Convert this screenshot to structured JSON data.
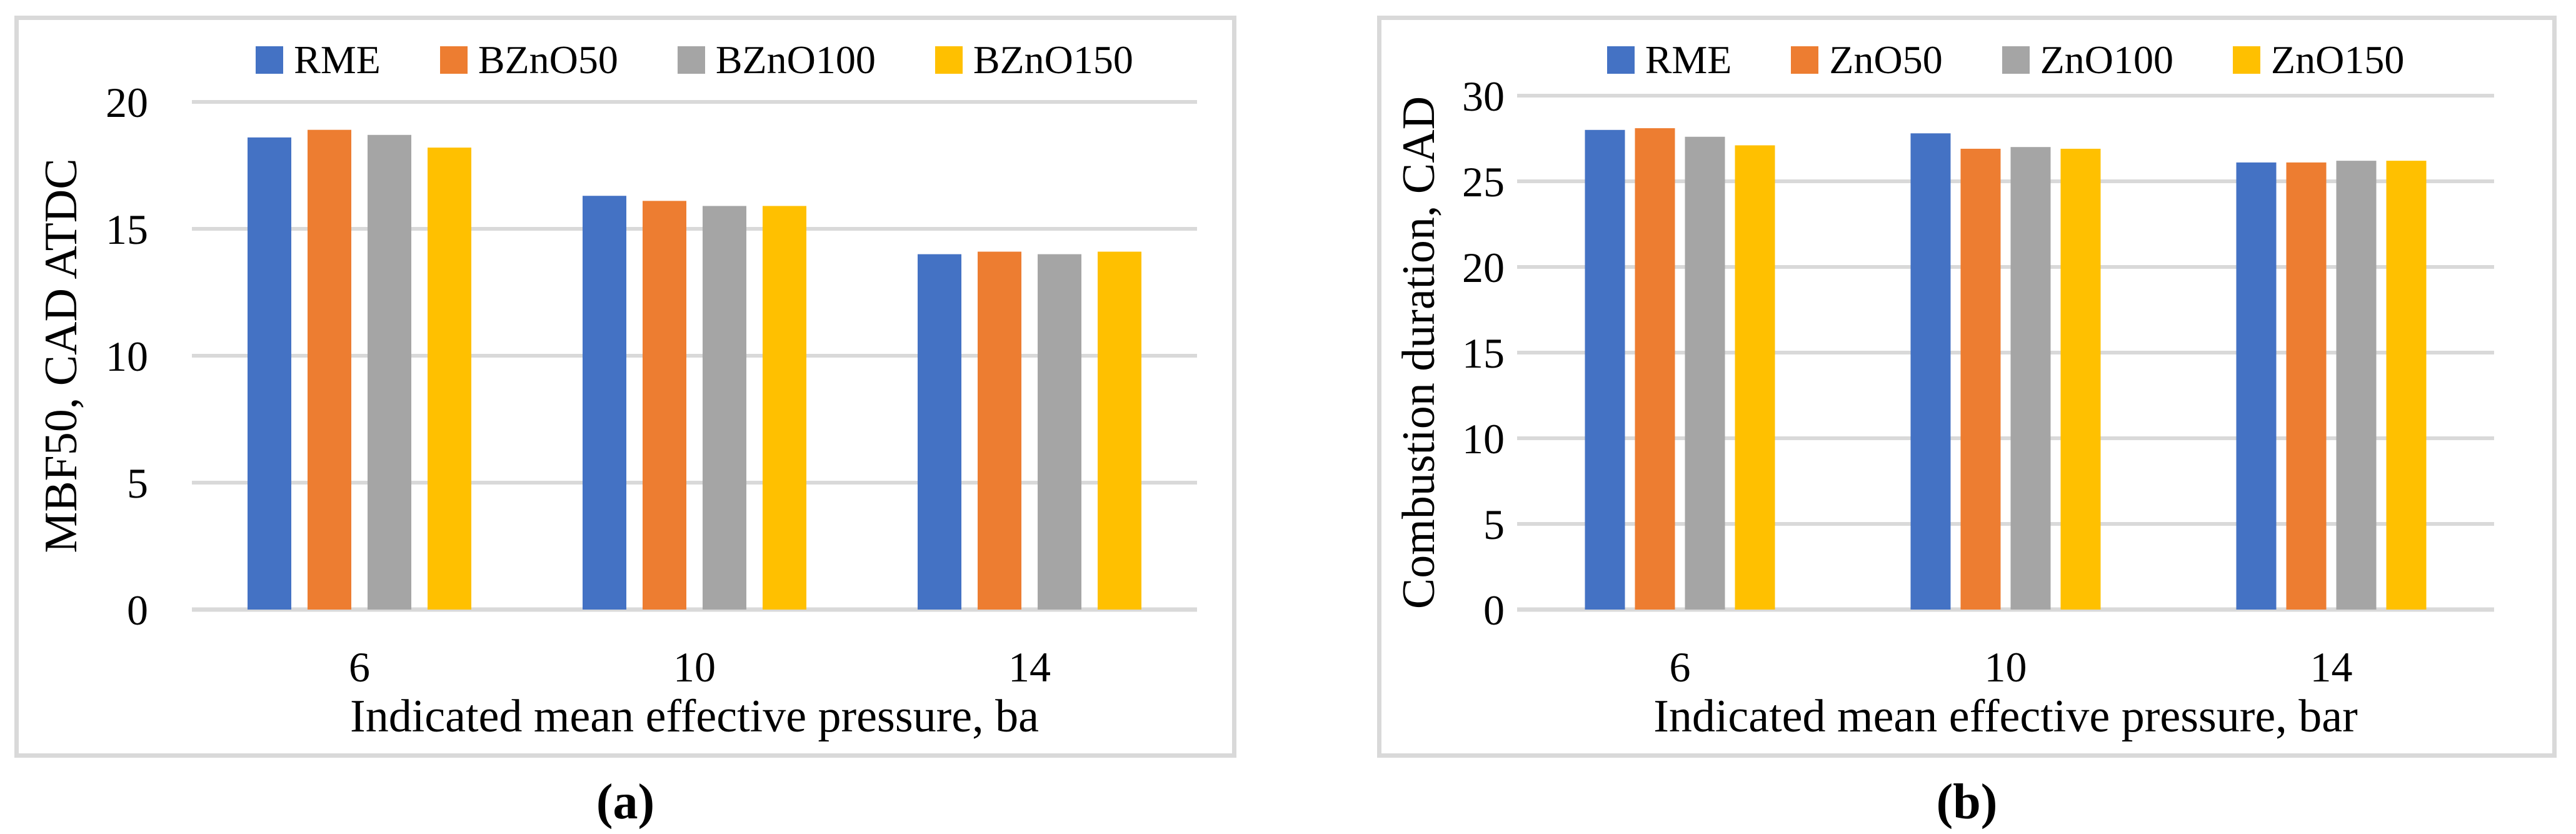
{
  "figure": {
    "background": "#FFFFFF",
    "captions": {
      "a": "(a)",
      "b": "(b)"
    }
  },
  "style": {
    "gridline_color": "#D9D9D9",
    "axis_line_color": "#D9D9D9",
    "panel_border_color": "#D9D9D9",
    "text_color": "#000000",
    "series_colors": [
      "#4472C4",
      "#ED7D31",
      "#A5A5A5",
      "#FFC000"
    ]
  },
  "chart_data": [
    {
      "id": "a",
      "type": "bar",
      "caption": "(a)",
      "title": "",
      "xlabel": "Indicated mean effective pressure, ba",
      "ylabel": "MBF50, CAD ATDC",
      "categories": [
        "6",
        "10",
        "14"
      ],
      "ylim": [
        0,
        20
      ],
      "yticks": [
        0,
        5,
        10,
        15,
        20
      ],
      "grid": true,
      "legend_position": "top",
      "legend": [
        "RME",
        "BZnO50",
        "BZnO100",
        "BZnO150"
      ],
      "series": [
        {
          "name": "RME",
          "color": "#4472C4",
          "values": [
            18.6,
            16.3,
            14.0
          ]
        },
        {
          "name": "BZnO50",
          "color": "#ED7D31",
          "values": [
            18.9,
            16.1,
            14.1
          ]
        },
        {
          "name": "BZnO100",
          "color": "#A5A5A5",
          "values": [
            18.7,
            15.9,
            14.0
          ]
        },
        {
          "name": "BZnO150",
          "color": "#FFC000",
          "values": [
            18.2,
            15.9,
            14.1
          ]
        }
      ]
    },
    {
      "id": "b",
      "type": "bar",
      "caption": "(b)",
      "title": "",
      "xlabel": "Indicated mean effective pressure, bar",
      "ylabel": "Combustion duration, CAD",
      "categories": [
        "6",
        "10",
        "14"
      ],
      "ylim": [
        0,
        30
      ],
      "yticks": [
        0,
        5,
        10,
        15,
        20,
        25,
        30
      ],
      "grid": true,
      "legend_position": "top",
      "legend": [
        "RME",
        "ZnO50",
        "ZnO100",
        "ZnO150"
      ],
      "series": [
        {
          "name": "RME",
          "color": "#4472C4",
          "values": [
            28.0,
            27.8,
            26.1
          ]
        },
        {
          "name": "ZnO50",
          "color": "#ED7D31",
          "values": [
            28.1,
            26.9,
            26.1
          ]
        },
        {
          "name": "ZnO100",
          "color": "#A5A5A5",
          "values": [
            27.6,
            27.0,
            26.2
          ]
        },
        {
          "name": "ZnO150",
          "color": "#FFC000",
          "values": [
            27.1,
            26.9,
            26.2
          ]
        }
      ]
    }
  ]
}
